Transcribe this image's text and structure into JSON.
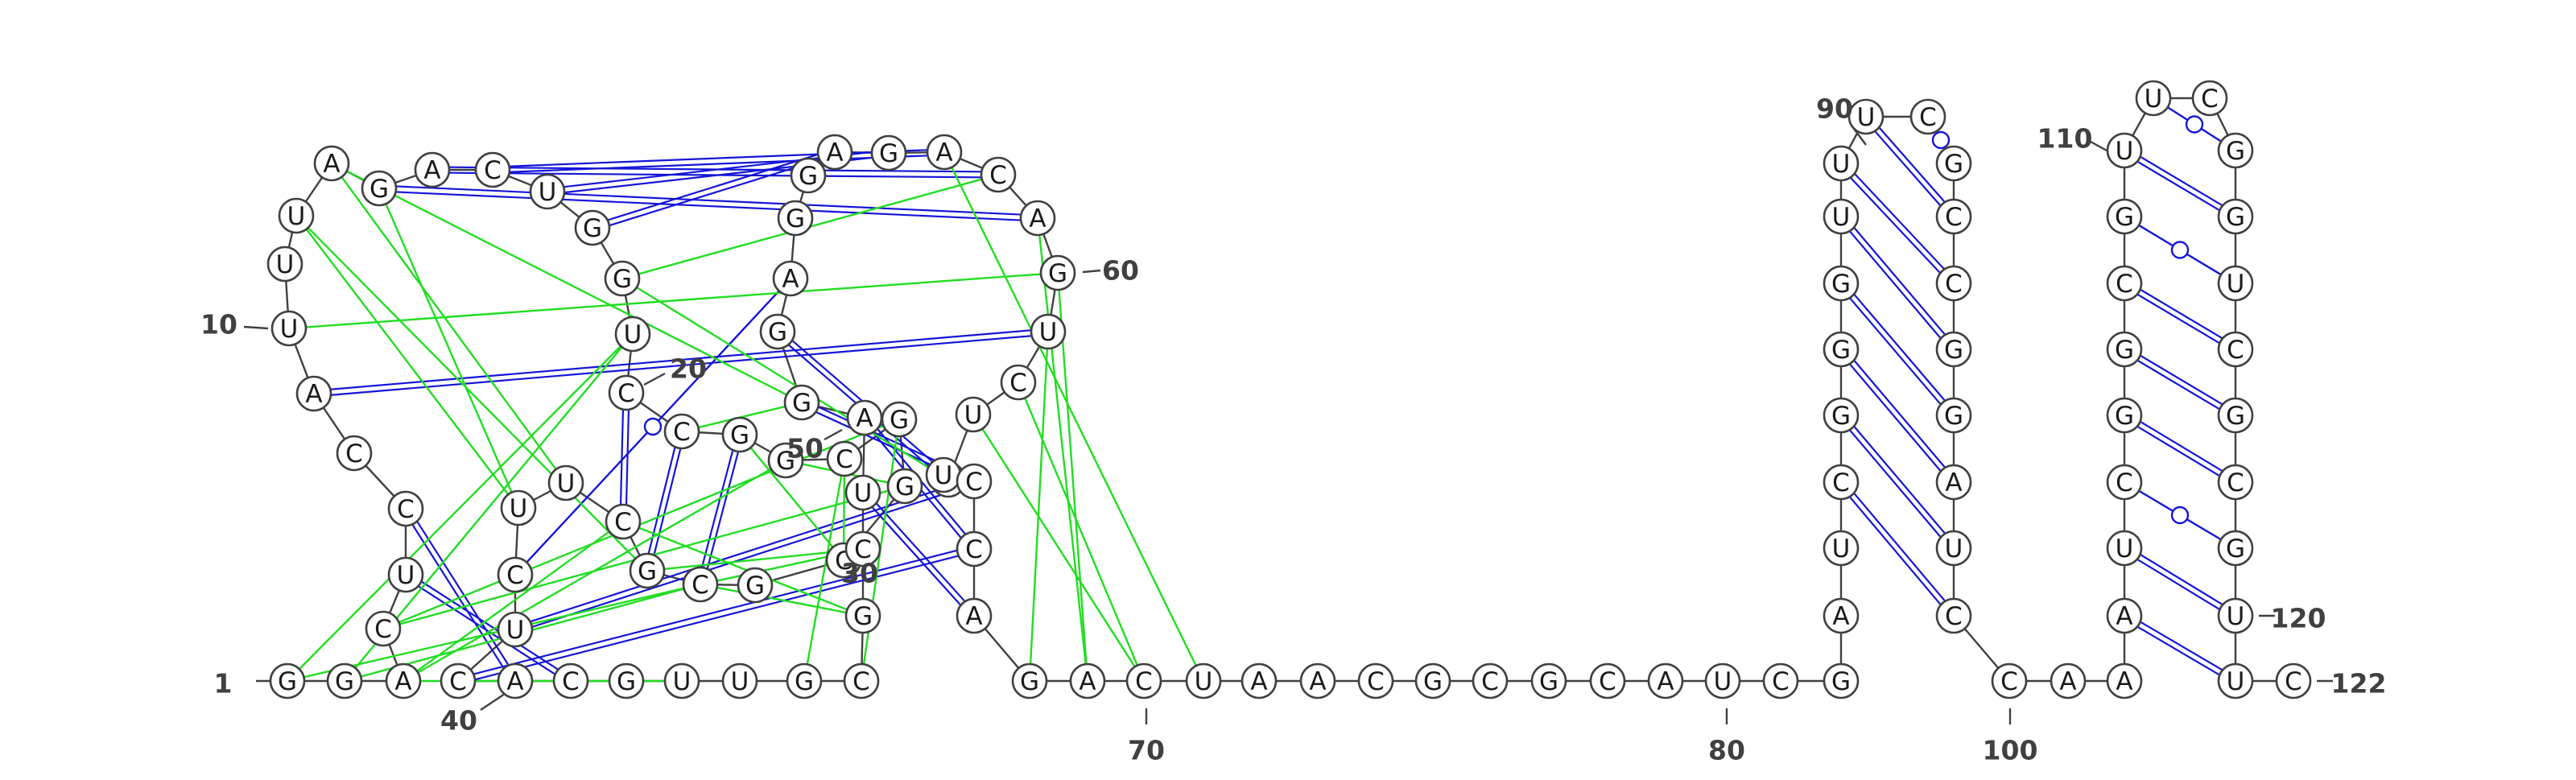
{
  "colors": {
    "canonical_pair": "#1515d8",
    "wobble_pair": "#1515d8",
    "tertiary": "#22dd22",
    "backbone": "#404040"
  },
  "nucleotides": [
    {
      "i": 1,
      "base": "G"
    },
    {
      "i": 2,
      "base": "G"
    },
    {
      "i": 3,
      "base": "A"
    },
    {
      "i": 4,
      "base": "C"
    },
    {
      "i": 5,
      "base": "U"
    },
    {
      "i": 6,
      "base": "C"
    },
    {
      "i": 7,
      "base": "C"
    },
    {
      "i": 8,
      "base": "A"
    },
    {
      "i": 9,
      "base": "U"
    },
    {
      "i": 10,
      "base": "U"
    },
    {
      "i": 11,
      "base": "U"
    },
    {
      "i": 12,
      "base": "A"
    },
    {
      "i": 13,
      "base": "G"
    },
    {
      "i": 14,
      "base": "A"
    },
    {
      "i": 15,
      "base": "C"
    },
    {
      "i": 16,
      "base": "U"
    },
    {
      "i": 17,
      "base": "G"
    },
    {
      "i": 18,
      "base": "G"
    },
    {
      "i": 19,
      "base": "U"
    },
    {
      "i": 20,
      "base": "C"
    },
    {
      "i": 21,
      "base": "C"
    },
    {
      "i": 22,
      "base": "G"
    },
    {
      "i": 23,
      "base": "G"
    },
    {
      "i": 24,
      "base": "C"
    },
    {
      "i": 25,
      "base": "G"
    },
    {
      "i": 26,
      "base": "G"
    },
    {
      "i": 27,
      "base": "C"
    },
    {
      "i": 28,
      "base": "G"
    },
    {
      "i": 29,
      "base": "C"
    },
    {
      "i": 30,
      "base": "G"
    },
    {
      "i": 31,
      "base": "C"
    },
    {
      "i": 32,
      "base": "U"
    },
    {
      "i": 33,
      "base": "U"
    },
    {
      "i": 34,
      "base": "C"
    },
    {
      "i": 35,
      "base": "U"
    },
    {
      "i": 36,
      "base": "C"
    },
    {
      "i": 37,
      "base": "A"
    },
    {
      "i": 38,
      "base": "C"
    },
    {
      "i": 39,
      "base": "G"
    },
    {
      "i": 40,
      "base": "U"
    },
    {
      "i": 41,
      "base": "U"
    },
    {
      "i": 42,
      "base": "G"
    },
    {
      "i": 43,
      "base": "C"
    },
    {
      "i": 44,
      "base": "G"
    },
    {
      "i": 45,
      "base": "C"
    },
    {
      "i": 46,
      "base": "U"
    },
    {
      "i": 47,
      "base": "A"
    },
    {
      "i": 48,
      "base": "G"
    },
    {
      "i": 49,
      "base": "G"
    },
    {
      "i": 50,
      "base": "A"
    },
    {
      "i": 51,
      "base": "G"
    },
    {
      "i": 52,
      "base": "G"
    },
    {
      "i": 53,
      "base": "A"
    },
    {
      "i": 54,
      "base": "G"
    },
    {
      "i": 55,
      "base": "A"
    },
    {
      "i": 56,
      "base": "C"
    },
    {
      "i": 57,
      "base": "A"
    },
    {
      "i": 58,
      "base": "G"
    },
    {
      "i": 59,
      "base": "U"
    },
    {
      "i": 60,
      "base": "C"
    },
    {
      "i": 61,
      "base": "U"
    },
    {
      "i": 62,
      "base": "U"
    },
    {
      "i": 63,
      "base": "U"
    },
    {
      "i": 64,
      "base": "C"
    },
    {
      "i": 65,
      "base": "C"
    },
    {
      "i": 66,
      "base": "A"
    },
    {
      "i": 67,
      "base": "G"
    },
    {
      "i": 68,
      "base": "A"
    },
    {
      "i": 69,
      "base": "C"
    },
    {
      "i": 70,
      "base": "U"
    },
    {
      "i": 71,
      "base": "A"
    },
    {
      "i": 72,
      "base": "A"
    },
    {
      "i": 73,
      "base": "C"
    },
    {
      "i": 74,
      "base": "G"
    },
    {
      "i": 75,
      "base": "C"
    },
    {
      "i": 76,
      "base": "G"
    },
    {
      "i": 77,
      "base": "C"
    },
    {
      "i": 78,
      "base": "A"
    },
    {
      "i": 79,
      "base": "U"
    },
    {
      "i": 80,
      "base": "C"
    },
    {
      "i": 81,
      "base": "G"
    },
    {
      "i": 82,
      "base": "A"
    },
    {
      "i": 83,
      "base": "U"
    },
    {
      "i": 84,
      "base": "C"
    },
    {
      "i": 85,
      "base": "G"
    },
    {
      "i": 86,
      "base": "G"
    },
    {
      "i": 87,
      "base": "G"
    },
    {
      "i": 88,
      "base": "U"
    },
    {
      "i": 89,
      "base": "U"
    },
    {
      "i": 90,
      "base": "U"
    },
    {
      "i": 91,
      "base": "C"
    },
    {
      "i": 92,
      "base": "G"
    },
    {
      "i": 93,
      "base": "C"
    },
    {
      "i": 94,
      "base": "C"
    },
    {
      "i": 95,
      "base": "G"
    },
    {
      "i": 96,
      "base": "G"
    },
    {
      "i": 97,
      "base": "A"
    },
    {
      "i": 98,
      "base": "U"
    },
    {
      "i": 99,
      "base": "C"
    },
    {
      "i": 100,
      "base": "C"
    },
    {
      "i": 101,
      "base": "A"
    },
    {
      "i": 102,
      "base": "A"
    },
    {
      "i": 103,
      "base": "A"
    },
    {
      "i": 104,
      "base": "U"
    },
    {
      "i": 105,
      "base": "C"
    },
    {
      "i": 106,
      "base": "G"
    },
    {
      "i": 107,
      "base": "G"
    },
    {
      "i": 108,
      "base": "C"
    },
    {
      "i": 109,
      "base": "G"
    },
    {
      "i": 110,
      "base": "U"
    },
    {
      "i": 111,
      "base": "U"
    },
    {
      "i": 112,
      "base": "C"
    },
    {
      "i": 113,
      "base": "G"
    },
    {
      "i": 114,
      "base": "G"
    },
    {
      "i": 115,
      "base": "U"
    },
    {
      "i": 116,
      "base": "C"
    },
    {
      "i": 117,
      "base": "G"
    },
    {
      "i": 118,
      "base": "C"
    },
    {
      "i": 119,
      "base": "G"
    },
    {
      "i": 120,
      "base": "U"
    },
    {
      "i": 121,
      "base": "U"
    },
    {
      "i": 122,
      "base": "C"
    }
  ],
  "pairs": [
    {
      "a": 3,
      "b": 40,
      "type": "tertiary"
    },
    {
      "a": 5,
      "b": 38,
      "type": "canonical"
    },
    {
      "a": 6,
      "b": 37,
      "type": "canonical"
    },
    {
      "a": 20,
      "b": 31,
      "type": "canonical"
    },
    {
      "a": 21,
      "b": 30,
      "type": "canonical"
    },
    {
      "a": 22,
      "b": 29,
      "type": "canonical"
    },
    {
      "a": 34,
      "b": 50,
      "type": "wobble"
    },
    {
      "a": 35,
      "b": 64,
      "type": "canonical"
    },
    {
      "a": 36,
      "b": 65,
      "type": "canonical"
    },
    {
      "a": 46,
      "b": 66,
      "type": "canonical"
    },
    {
      "a": 47,
      "b": 65,
      "type": "canonical"
    },
    {
      "a": 48,
      "b": 64,
      "type": "canonical"
    },
    {
      "a": 49,
      "b": 63,
      "type": "canonical"
    },
    {
      "a": 8,
      "b": 59,
      "type": "canonical"
    },
    {
      "a": 13,
      "b": 57,
      "type": "canonical"
    },
    {
      "a": 14,
      "b": 56,
      "type": "canonical"
    },
    {
      "a": 15,
      "b": 55,
      "type": "canonical"
    },
    {
      "a": 16,
      "b": 54,
      "type": "canonical"
    },
    {
      "a": 17,
      "b": 53,
      "type": "canonical"
    },
    {
      "a": 84,
      "b": 99,
      "type": "canonical"
    },
    {
      "a": 85,
      "b": 98,
      "type": "canonical"
    },
    {
      "a": 86,
      "b": 97,
      "type": "canonical"
    },
    {
      "a": 87,
      "b": 96,
      "type": "canonical"
    },
    {
      "a": 88,
      "b": 95,
      "type": "canonical"
    },
    {
      "a": 89,
      "b": 94,
      "type": "canonical"
    },
    {
      "a": 90,
      "b": 93,
      "type": "canonical"
    },
    {
      "a": 91,
      "b": 92,
      "type": "wobble"
    },
    {
      "a": 103,
      "b": 121,
      "type": "canonical"
    },
    {
      "a": 104,
      "b": 120,
      "type": "canonical"
    },
    {
      "a": 105,
      "b": 119,
      "type": "wobble"
    },
    {
      "a": 106,
      "b": 118,
      "type": "canonical"
    },
    {
      "a": 107,
      "b": 117,
      "type": "canonical"
    },
    {
      "a": 108,
      "b": 116,
      "type": "canonical"
    },
    {
      "a": 109,
      "b": 115,
      "type": "wobble"
    },
    {
      "a": 110,
      "b": 114,
      "type": "canonical"
    },
    {
      "a": 111,
      "b": 113,
      "type": "wobble"
    },
    {
      "a": 1,
      "b": 19,
      "type": "tertiary"
    },
    {
      "a": 2,
      "b": 19,
      "type": "tertiary"
    },
    {
      "a": 3,
      "b": 23,
      "type": "tertiary"
    },
    {
      "a": 4,
      "b": 25,
      "type": "tertiary"
    },
    {
      "a": 4,
      "b": 26,
      "type": "tertiary"
    },
    {
      "a": 11,
      "b": 30,
      "type": "tertiary"
    },
    {
      "a": 11,
      "b": 33,
      "type": "tertiary"
    },
    {
      "a": 12,
      "b": 32,
      "type": "tertiary"
    },
    {
      "a": 13,
      "b": 33,
      "type": "tertiary"
    },
    {
      "a": 12,
      "b": 48,
      "type": "tertiary"
    },
    {
      "a": 21,
      "b": 48,
      "type": "tertiary"
    },
    {
      "a": 22,
      "b": 27,
      "type": "tertiary"
    },
    {
      "a": 23,
      "b": 26,
      "type": "tertiary"
    },
    {
      "a": 24,
      "b": 27,
      "type": "tertiary"
    },
    {
      "a": 24,
      "b": 42,
      "type": "tertiary"
    },
    {
      "a": 25,
      "b": 43,
      "type": "tertiary"
    },
    {
      "a": 29,
      "b": 44,
      "type": "tertiary"
    },
    {
      "a": 29,
      "b": 45,
      "type": "tertiary"
    },
    {
      "a": 30,
      "b": 45,
      "type": "tertiary"
    },
    {
      "a": 31,
      "b": 44,
      "type": "tertiary"
    },
    {
      "a": 1,
      "b": 29,
      "type": "tertiary"
    },
    {
      "a": 2,
      "b": 29,
      "type": "tertiary"
    },
    {
      "a": 3,
      "b": 31,
      "type": "tertiary"
    },
    {
      "a": 9,
      "b": 58,
      "type": "tertiary"
    },
    {
      "a": 18,
      "b": 56,
      "type": "tertiary"
    },
    {
      "a": 59,
      "b": 67,
      "type": "tertiary"
    },
    {
      "a": 58,
      "b": 68,
      "type": "tertiary"
    },
    {
      "a": 57,
      "b": 68,
      "type": "tertiary"
    },
    {
      "a": 60,
      "b": 69,
      "type": "tertiary"
    },
    {
      "a": 61,
      "b": 69,
      "type": "tertiary"
    },
    {
      "a": 55,
      "b": 70,
      "type": "tertiary"
    },
    {
      "a": 18,
      "b": 62,
      "type": "tertiary"
    }
  ],
  "number_labels": [
    {
      "label": "1",
      "i": 1
    },
    {
      "label": "10",
      "i": 10
    },
    {
      "label": "20",
      "i": 20
    },
    {
      "label": "30",
      "i": 30
    },
    {
      "label": "40",
      "i": 40
    },
    {
      "label": "50",
      "i": 50
    },
    {
      "label": "60",
      "i": 60
    },
    {
      "label": "70",
      "i": 70
    },
    {
      "label": "80",
      "i": 80
    },
    {
      "label": "90",
      "i": 90
    },
    {
      "label": "100",
      "i": 100
    },
    {
      "label": "110",
      "i": 110
    },
    {
      "label": "120",
      "i": 120
    },
    {
      "label": "122",
      "i": 122
    }
  ]
}
